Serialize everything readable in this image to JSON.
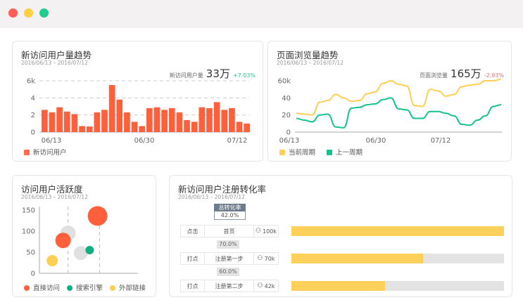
{
  "window": {
    "buttons": [
      {
        "name": "close",
        "color": "#ff5f57"
      },
      {
        "name": "minimize",
        "color": "#ffcf44"
      },
      {
        "name": "maximize",
        "color": "#1fcd90"
      }
    ]
  },
  "cards": {
    "new_users": {
      "title": "新访问用户量趋势",
      "date": "2016/06/13 – 2016/07/12",
      "kpi_label": "新访问用户量",
      "kpi_value": "33万",
      "kpi_change": "+7.03%",
      "kpi_change_color": "#2dc18a",
      "legend": "新访问用户"
    },
    "pageviews": {
      "title": "页面浏览量趋势",
      "date": "2016/06/13 – 2016/07/12",
      "kpi_label": "页面浏览量",
      "kpi_value": "165万",
      "kpi_change": "-2.93%",
      "kpi_change_color": "#f26b6b",
      "legend": [
        "当前周期",
        "上一周期"
      ]
    },
    "activity": {
      "title": "访问用户活跃度",
      "date": "2016/06/13 – 2016/07/12",
      "legend": [
        "直接访问",
        "搜索引擎",
        "外部链接"
      ]
    },
    "funnel": {
      "title": "新访问用户注册转化率",
      "date": "2016/06/13 – 2016/07/12",
      "total_label": "总转化率",
      "total_rate": "42.0%",
      "steps": [
        {
          "action": "点击",
          "page": "首页",
          "users": "100k",
          "fill": 1.0
        },
        {
          "action": "打点",
          "page": "注册第一步",
          "users": "70k",
          "fill": 0.62
        },
        {
          "action": "打点",
          "page": "注册第二步",
          "users": "42k",
          "fill": 0.44
        }
      ],
      "rates": [
        "70.0%",
        "60.0%"
      ],
      "bar_color": "#ffd15b"
    }
  },
  "chart_data": [
    {
      "type": "bar",
      "title": "新访问用户量趋势",
      "ylim": [
        0,
        6
      ],
      "yticks": [
        "0",
        "2",
        "4",
        "6k"
      ],
      "xticks": [
        "06/13",
        "06/30",
        "07/12"
      ],
      "color": "#ff5f3a",
      "series": [
        {
          "name": "新访问用户",
          "values": [
            2.6,
            2.3,
            2.9,
            2.4,
            2.1,
            0.7,
            0.65,
            2.3,
            2.6,
            5.5,
            3.8,
            2.3,
            1.2,
            0.7,
            2.8,
            2.9,
            2.6,
            2.8,
            2.3,
            1.4,
            1.2,
            2.9,
            2.8,
            3.5,
            2.6,
            2.8,
            1.2,
            1.0
          ]
        }
      ]
    },
    {
      "type": "line",
      "title": "页面浏览量趋势",
      "ylim": [
        0,
        60
      ],
      "yticks": [
        "0",
        "20",
        "40",
        "60k"
      ],
      "xticks": [
        "06/13",
        "06/30",
        "07/12"
      ],
      "series": [
        {
          "name": "当前周期",
          "color": "#ffcf55",
          "values": [
            22,
            21,
            20,
            35,
            37,
            44,
            40,
            36,
            37,
            45,
            47,
            57,
            60,
            56,
            54,
            31,
            30,
            50,
            48,
            42,
            44,
            53,
            55,
            56,
            60,
            60,
            62
          ]
        },
        {
          "name": "上一周期",
          "color": "#13c28d",
          "values": [
            16,
            14,
            12,
            20,
            21,
            6,
            5,
            28,
            29,
            32,
            33,
            38,
            40,
            27,
            26,
            16,
            16,
            24,
            24,
            22,
            19,
            9,
            8,
            14,
            19,
            30,
            32
          ]
        }
      ]
    },
    {
      "type": "scatter",
      "title": "访问用户活跃度",
      "ylim": [
        0,
        150
      ],
      "xlim": [
        0,
        10
      ],
      "yticks": [
        "0",
        "50",
        "100",
        "150"
      ],
      "series": [
        {
          "name": "直接访问",
          "color": "#ff5f3a",
          "points": [
            [
              5.9,
              136,
              14
            ],
            [
              2.4,
              78,
              11
            ]
          ]
        },
        {
          "name": "搜索引擎",
          "color": "#12ad82",
          "points": [
            [
              5.1,
              55,
              6
            ]
          ]
        },
        {
          "name": "外部链接",
          "color": "#ffcf55",
          "points": [
            [
              1.3,
              30,
              8
            ]
          ]
        },
        {
          "name": "",
          "color": "#dddddd",
          "points": [
            [
              2.9,
              95,
              11
            ],
            [
              4.2,
              48,
              10
            ]
          ]
        }
      ],
      "markers_x": [
        2.9,
        6.1
      ]
    }
  ]
}
